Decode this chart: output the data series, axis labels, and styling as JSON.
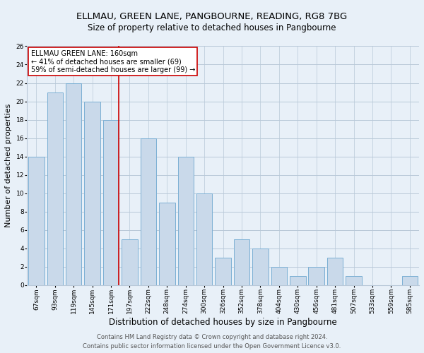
{
  "title": "ELLMAU, GREEN LANE, PANGBOURNE, READING, RG8 7BG",
  "subtitle": "Size of property relative to detached houses in Pangbourne",
  "xlabel": "Distribution of detached houses by size in Pangbourne",
  "ylabel": "Number of detached properties",
  "bar_labels": [
    "67sqm",
    "93sqm",
    "119sqm",
    "145sqm",
    "171sqm",
    "197sqm",
    "222sqm",
    "248sqm",
    "274sqm",
    "300sqm",
    "326sqm",
    "352sqm",
    "378sqm",
    "404sqm",
    "430sqm",
    "456sqm",
    "481sqm",
    "507sqm",
    "533sqm",
    "559sqm",
    "585sqm"
  ],
  "bar_values": [
    14,
    21,
    22,
    20,
    18,
    5,
    16,
    9,
    14,
    10,
    3,
    5,
    4,
    2,
    1,
    2,
    3,
    1,
    0,
    0,
    1
  ],
  "bar_color": "#c9d9ea",
  "bar_edge_color": "#7bafd4",
  "vline_color": "#cc0000",
  "annotation_title": "ELLMAU GREEN LANE: 160sqm",
  "annotation_line1": "← 41% of detached houses are smaller (69)",
  "annotation_line2": "59% of semi-detached houses are larger (99) →",
  "annotation_box_color": "#ffffff",
  "annotation_box_edge": "#cc0000",
  "ylim": [
    0,
    26
  ],
  "yticks": [
    0,
    2,
    4,
    6,
    8,
    10,
    12,
    14,
    16,
    18,
    20,
    22,
    24,
    26
  ],
  "grid_color": "#b8c8d8",
  "background_color": "#e8f0f8",
  "footer_line1": "Contains HM Land Registry data © Crown copyright and database right 2024.",
  "footer_line2": "Contains public sector information licensed under the Open Government Licence v3.0.",
  "title_fontsize": 9.5,
  "subtitle_fontsize": 8.5,
  "xlabel_fontsize": 8.5,
  "ylabel_fontsize": 8,
  "tick_fontsize": 6.5,
  "annotation_fontsize": 7,
  "footer_fontsize": 6
}
